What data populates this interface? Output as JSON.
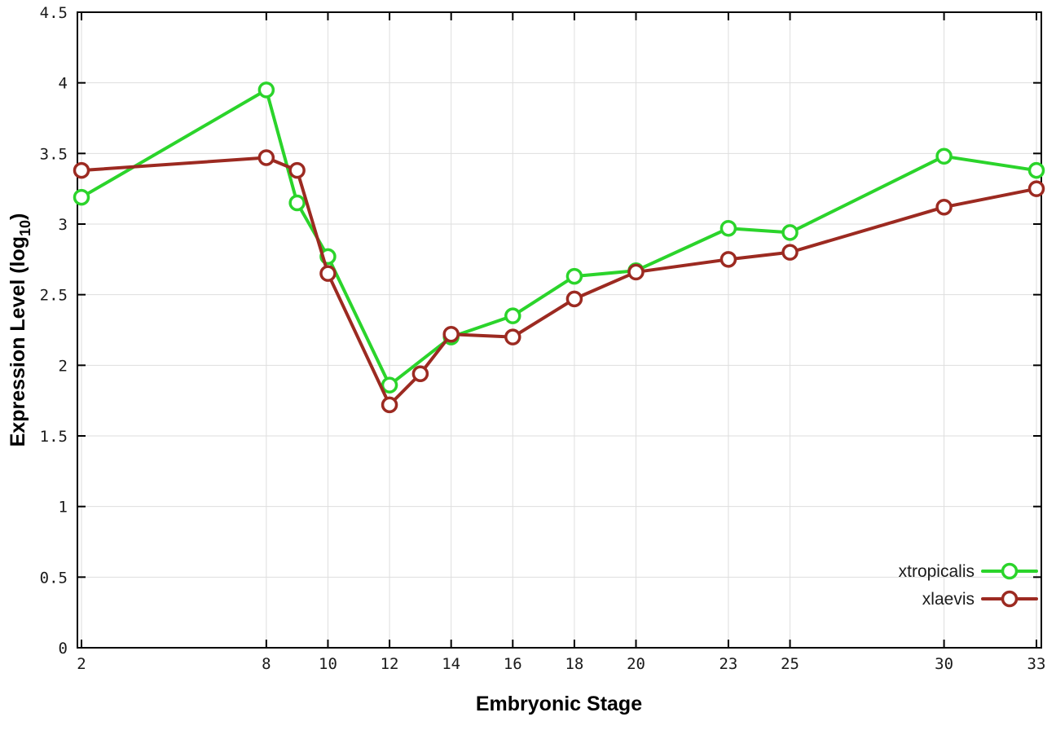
{
  "chart_data": {
    "type": "line",
    "title": "",
    "xlabel": "Embryonic Stage",
    "ylabel": "Expression Level (log10)",
    "ylabel_parts": {
      "prefix": "Expression Level (log",
      "sub": "10",
      "suffix": ")"
    },
    "xlim": [
      2,
      33
    ],
    "ylim": [
      0,
      4.5
    ],
    "xticks": [
      2,
      8,
      10,
      12,
      14,
      16,
      18,
      20,
      23,
      25,
      30,
      33
    ],
    "xtick_labels": [
      "2",
      "8",
      "10",
      "12",
      "14",
      "16",
      "18",
      "20",
      "23",
      "25",
      "30",
      "33"
    ],
    "yticks": [
      0,
      0.5,
      1,
      1.5,
      2,
      2.5,
      3,
      3.5,
      4,
      4.5
    ],
    "ytick_labels": [
      "0",
      "0.5",
      "1",
      "1.5",
      "2",
      "2.5",
      "3",
      "3.5",
      "4",
      "4.5"
    ],
    "grid": true,
    "grid_color": "#dedede",
    "axis_color": "#000000",
    "background_color": "#ffffff",
    "legend_position": "bottom-right",
    "marker": "open-circle",
    "series": [
      {
        "name": "xtropicalis",
        "color": "#2bd42b",
        "x": [
          2,
          8,
          9,
          10,
          12,
          14,
          16,
          18,
          20,
          23,
          25,
          30,
          33
        ],
        "y": [
          3.19,
          3.95,
          3.15,
          2.77,
          1.86,
          2.2,
          2.35,
          2.63,
          2.67,
          2.97,
          2.94,
          3.48,
          3.38
        ]
      },
      {
        "name": "xlaevis",
        "color": "#9c2a21",
        "x": [
          2,
          8,
          9,
          10,
          12,
          13,
          14,
          16,
          18,
          20,
          23,
          25,
          30,
          33
        ],
        "y": [
          3.38,
          3.47,
          3.38,
          2.65,
          1.72,
          1.94,
          2.22,
          2.2,
          2.47,
          2.66,
          2.75,
          2.8,
          3.12,
          3.25
        ]
      }
    ]
  }
}
